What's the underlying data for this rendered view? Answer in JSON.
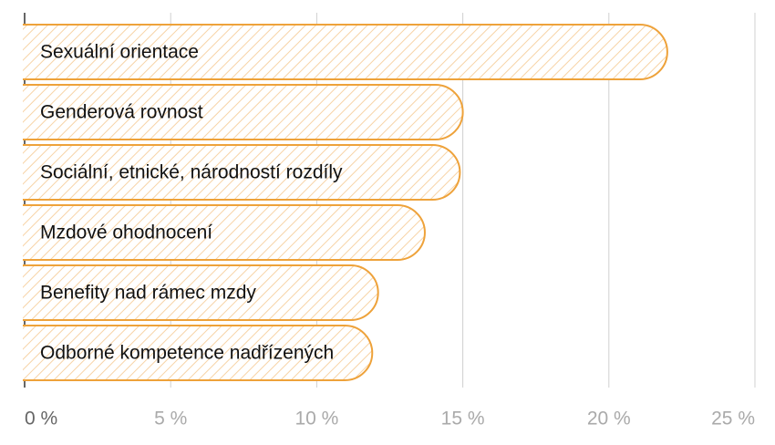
{
  "chart_data": {
    "type": "bar",
    "categories": [
      "Sexuální orientace",
      "Genderová rovnost",
      "Sociální, etnické, národností rozdíly",
      "Mzdové ohodnocení",
      "Benefity nad rámec mzdy",
      "Odborné kompetence nadřízených"
    ],
    "values": [
      22,
      15,
      14.9,
      13.7,
      12.1,
      11.9
    ],
    "color": "#eea23a",
    "xlim": [
      0,
      25
    ],
    "xticks": [
      {
        "value": 0,
        "label": "0 %"
      },
      {
        "value": 5,
        "label": "5 %"
      },
      {
        "value": 10,
        "label": "10 %"
      },
      {
        "value": 15,
        "label": "15 %"
      },
      {
        "value": 20,
        "label": "20 %"
      },
      {
        "value": 25,
        "label": "25 %"
      }
    ],
    "grid": true
  }
}
